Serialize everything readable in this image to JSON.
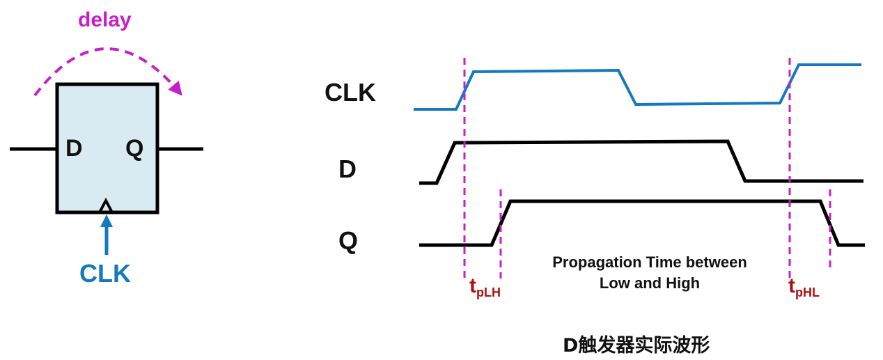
{
  "colors": {
    "clk": "#1479c0",
    "delay": "#c81ec8",
    "marker": "#c81ec8",
    "timing_label": "#b01010",
    "box_fill": "#daeaf2",
    "line": "#000000"
  },
  "flipflop": {
    "delay_label": "delay",
    "d_pin": "D",
    "q_pin": "Q",
    "clk_label": "CLK"
  },
  "waveforms": {
    "clk_name": "CLK",
    "d_name": "D",
    "q_name": "Q"
  },
  "timing": {
    "t": "t",
    "plh_sub": "pLH",
    "phl_sub": "pHL",
    "caption_line1": "Propagation Time between",
    "caption_line2": "Low and High"
  },
  "caption": "D触发器实际波形"
}
